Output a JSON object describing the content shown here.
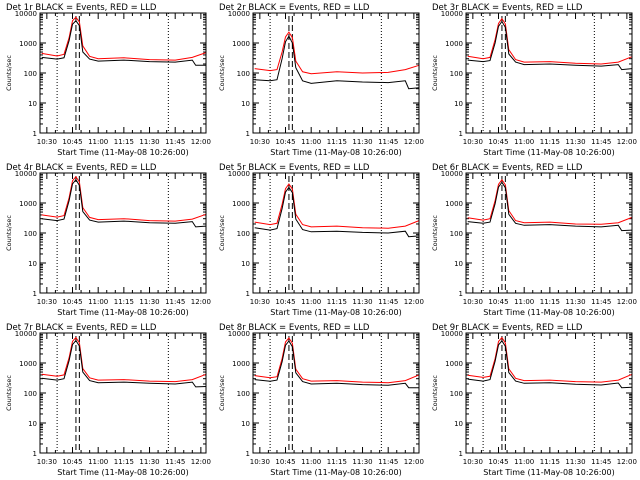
{
  "figure": {
    "rows": 3,
    "cols": 3
  },
  "colors": {
    "events": "#000000",
    "lld": "#ff0000",
    "axes": "#000000",
    "background": "#ffffff"
  },
  "chart_data": [
    {
      "type": "line",
      "title": "Det 1r BLACK = Events, RED = LLD",
      "xlabel": "Start Time (11-May-08 10:26:00)",
      "ylabel": "Counts/sec",
      "yscale": "log",
      "ylim": [
        1,
        10000
      ],
      "xlim": [
        "10:26",
        "12:03"
      ],
      "x_ticks": [
        "10:30",
        "10:45",
        "11:00",
        "11:15",
        "11:30",
        "11:45",
        "12:00"
      ],
      "y_ticks": [
        "1",
        "10",
        "100",
        "1000",
        "10000"
      ],
      "vertical_lines": {
        "dotted": [
          "10:36",
          "11:41"
        ],
        "dashed": [
          "10:47",
          "10:49"
        ]
      },
      "series": [
        {
          "color": "#ff0000",
          "x": [
            "10:27",
            "10:36",
            "10:40",
            "10:43",
            "10:45",
            "10:47",
            "10:49",
            "10:51",
            "10:55",
            "11:00",
            "11:15",
            "11:30",
            "11:45",
            "11:55",
            "12:03"
          ],
          "y": [
            450,
            370,
            420,
            1500,
            5500,
            7200,
            5000,
            800,
            360,
            300,
            320,
            280,
            270,
            330,
            480
          ]
        },
        {
          "color": "#000000",
          "x": [
            "10:27",
            "10:36",
            "10:40",
            "10:43",
            "10:45",
            "10:47",
            "10:49",
            "10:51",
            "10:55",
            "11:00",
            "11:15",
            "11:30",
            "11:45",
            "11:55",
            "11:57",
            "12:03"
          ],
          "y": [
            330,
            290,
            320,
            1200,
            4200,
            5500,
            3800,
            500,
            290,
            250,
            270,
            240,
            230,
            270,
            180,
            180
          ]
        }
      ]
    },
    {
      "type": "line",
      "title": "Det 2r BLACK = Events, RED = LLD",
      "xlabel": "Start Time (11-May-08 10:26:00)",
      "ylabel": "Counts/sec",
      "yscale": "log",
      "ylim": [
        1,
        10000
      ],
      "xlim": [
        "10:26",
        "12:03"
      ],
      "x_ticks": [
        "10:30",
        "10:45",
        "11:00",
        "11:15",
        "11:30",
        "11:45",
        "12:00"
      ],
      "y_ticks": [
        "1",
        "10",
        "100",
        "1000",
        "10000"
      ],
      "vertical_lines": {
        "dotted": [
          "10:36",
          "11:41"
        ],
        "dashed": [
          "10:47",
          "10:49"
        ]
      },
      "series": [
        {
          "color": "#ff0000",
          "x": [
            "10:27",
            "10:36",
            "10:40",
            "10:43",
            "10:45",
            "10:47",
            "10:49",
            "10:51",
            "10:55",
            "11:00",
            "11:15",
            "11:30",
            "11:45",
            "11:55",
            "12:03"
          ],
          "y": [
            140,
            120,
            130,
            500,
            1600,
            2300,
            1500,
            250,
            110,
            95,
            110,
            100,
            105,
            130,
            180
          ]
        },
        {
          "color": "#000000",
          "x": [
            "10:27",
            "10:36",
            "10:40",
            "10:43",
            "10:45",
            "10:47",
            "10:49",
            "10:51",
            "10:55",
            "11:00",
            "11:15",
            "11:30",
            "11:45",
            "11:55",
            "11:57",
            "12:03"
          ],
          "y": [
            60,
            55,
            60,
            300,
            1100,
            1700,
            1000,
            150,
            55,
            45,
            55,
            50,
            48,
            55,
            30,
            32
          ]
        }
      ]
    },
    {
      "type": "line",
      "title": "Det 3r BLACK = Events, RED = LLD",
      "xlabel": "Start Time (11-May-08 10:26:00)",
      "ylabel": "Counts/sec",
      "yscale": "log",
      "ylim": [
        1,
        10000
      ],
      "xlim": [
        "10:26",
        "12:03"
      ],
      "x_ticks": [
        "10:30",
        "10:45",
        "11:00",
        "11:15",
        "11:30",
        "11:45",
        "12:00"
      ],
      "y_ticks": [
        "1",
        "10",
        "100",
        "1000",
        "10000"
      ],
      "vertical_lines": {
        "dotted": [
          "10:36",
          "11:41"
        ],
        "dashed": [
          "10:47",
          "10:49"
        ]
      },
      "series": [
        {
          "color": "#ff0000",
          "x": [
            "10:27",
            "10:36",
            "10:40",
            "10:43",
            "10:45",
            "10:47",
            "10:49",
            "10:51",
            "10:55",
            "11:00",
            "11:15",
            "11:30",
            "11:45",
            "11:55",
            "12:03"
          ],
          "y": [
            360,
            300,
            330,
            1300,
            4500,
            6500,
            4300,
            600,
            280,
            230,
            240,
            210,
            200,
            230,
            350
          ]
        },
        {
          "color": "#000000",
          "x": [
            "10:27",
            "10:36",
            "10:40",
            "10:43",
            "10:45",
            "10:47",
            "10:49",
            "10:51",
            "10:55",
            "11:00",
            "11:15",
            "11:30",
            "11:45",
            "11:55",
            "11:57",
            "12:03"
          ],
          "y": [
            270,
            240,
            260,
            1000,
            3600,
            5200,
            3300,
            430,
            230,
            190,
            200,
            180,
            170,
            190,
            130,
            140
          ]
        }
      ]
    },
    {
      "type": "line",
      "title": "Det 4r BLACK = Events, RED = LLD",
      "xlabel": "Start Time (11-May-08 10:26:00)",
      "ylabel": "Counts/sec",
      "yscale": "log",
      "ylim": [
        1,
        10000
      ],
      "xlim": [
        "10:26",
        "12:03"
      ],
      "x_ticks": [
        "10:30",
        "10:45",
        "11:00",
        "11:15",
        "11:30",
        "11:45",
        "12:00"
      ],
      "y_ticks": [
        "1",
        "10",
        "100",
        "1000",
        "10000"
      ],
      "vertical_lines": {
        "dotted": [
          "10:36",
          "11:41"
        ],
        "dashed": [
          "10:47",
          "10:49"
        ]
      },
      "series": [
        {
          "color": "#ff0000",
          "x": [
            "10:27",
            "10:36",
            "10:40",
            "10:43",
            "10:45",
            "10:47",
            "10:49",
            "10:51",
            "10:55",
            "11:00",
            "11:15",
            "11:30",
            "11:45",
            "11:55",
            "12:03"
          ],
          "y": [
            400,
            340,
            380,
            1500,
            5500,
            7500,
            5000,
            700,
            330,
            280,
            300,
            260,
            250,
            290,
            420
          ]
        },
        {
          "color": "#000000",
          "x": [
            "10:27",
            "10:36",
            "10:40",
            "10:43",
            "10:45",
            "10:47",
            "10:49",
            "10:51",
            "10:55",
            "11:00",
            "11:15",
            "11:30",
            "11:45",
            "11:55",
            "11:57",
            "12:03"
          ],
          "y": [
            300,
            260,
            290,
            1200,
            4300,
            6000,
            3900,
            520,
            270,
            230,
            250,
            220,
            210,
            240,
            160,
            170
          ]
        }
      ]
    },
    {
      "type": "line",
      "title": "Det 5r BLACK = Events, RED = LLD",
      "xlabel": "Start Time (11-May-08 10:26:00)",
      "ylabel": "Counts/sec",
      "yscale": "log",
      "ylim": [
        1,
        10000
      ],
      "xlim": [
        "10:26",
        "12:03"
      ],
      "x_ticks": [
        "10:30",
        "10:45",
        "11:00",
        "11:15",
        "11:30",
        "11:45",
        "12:00"
      ],
      "y_ticks": [
        "1",
        "10",
        "100",
        "1000",
        "10000"
      ],
      "vertical_lines": {
        "dotted": [
          "10:36",
          "11:41"
        ],
        "dashed": [
          "10:47",
          "10:49"
        ]
      },
      "series": [
        {
          "color": "#ff0000",
          "x": [
            "10:27",
            "10:36",
            "10:40",
            "10:43",
            "10:45",
            "10:47",
            "10:49",
            "10:51",
            "10:55",
            "11:00",
            "11:15",
            "11:30",
            "11:45",
            "11:55",
            "12:03"
          ],
          "y": [
            230,
            190,
            210,
            900,
            3000,
            4300,
            2900,
            420,
            190,
            160,
            170,
            150,
            145,
            170,
            260
          ]
        },
        {
          "color": "#000000",
          "x": [
            "10:27",
            "10:36",
            "10:40",
            "10:43",
            "10:45",
            "10:47",
            "10:49",
            "10:51",
            "10:55",
            "11:00",
            "11:15",
            "11:30",
            "11:45",
            "11:55",
            "11:57",
            "12:03"
          ],
          "y": [
            150,
            125,
            140,
            650,
            2300,
            3300,
            2200,
            290,
            130,
            110,
            115,
            105,
            100,
            115,
            75,
            80
          ]
        }
      ]
    },
    {
      "type": "line",
      "title": "Det 6r BLACK = Events, RED = LLD",
      "xlabel": "Start Time (11-May-08 10:26:00)",
      "ylabel": "Counts/sec",
      "yscale": "log",
      "ylim": [
        1,
        10000
      ],
      "xlim": [
        "10:26",
        "12:03"
      ],
      "x_ticks": [
        "10:30",
        "10:45",
        "11:00",
        "11:15",
        "11:30",
        "11:45",
        "12:00"
      ],
      "y_ticks": [
        "1",
        "10",
        "100",
        "1000",
        "10000"
      ],
      "vertical_lines": {
        "dotted": [
          "10:36",
          "11:41"
        ],
        "dashed": [
          "10:47",
          "10:49"
        ]
      },
      "series": [
        {
          "color": "#ff0000",
          "x": [
            "10:27",
            "10:36",
            "10:40",
            "10:43",
            "10:45",
            "10:47",
            "10:49",
            "10:51",
            "10:55",
            "11:00",
            "11:15",
            "11:30",
            "11:45",
            "11:55",
            "12:03"
          ],
          "y": [
            320,
            270,
            300,
            1200,
            4200,
            6000,
            4000,
            560,
            260,
            220,
            230,
            200,
            195,
            220,
            330
          ]
        },
        {
          "color": "#000000",
          "x": [
            "10:27",
            "10:36",
            "10:40",
            "10:43",
            "10:45",
            "10:47",
            "10:49",
            "10:51",
            "10:55",
            "11:00",
            "11:15",
            "11:30",
            "11:45",
            "11:55",
            "11:57",
            "12:03"
          ],
          "y": [
            240,
            210,
            230,
            950,
            3400,
            4900,
            3200,
            420,
            210,
            180,
            190,
            170,
            160,
            180,
            120,
            125
          ]
        }
      ]
    },
    {
      "type": "line",
      "title": "Det 7r BLACK = Events, RED = LLD",
      "xlabel": "Start Time (11-May-08 10:26:00)",
      "ylabel": "Counts/sec",
      "yscale": "log",
      "ylim": [
        1,
        10000
      ],
      "xlim": [
        "10:26",
        "12:03"
      ],
      "x_ticks": [
        "10:30",
        "10:45",
        "11:00",
        "11:15",
        "11:30",
        "11:45",
        "12:00"
      ],
      "y_ticks": [
        "1",
        "10",
        "100",
        "1000",
        "10000"
      ],
      "vertical_lines": {
        "dotted": [
          "10:36",
          "11:41"
        ],
        "dashed": [
          "10:47",
          "10:49"
        ]
      },
      "series": [
        {
          "color": "#ff0000",
          "x": [
            "10:27",
            "10:36",
            "10:40",
            "10:43",
            "10:45",
            "10:47",
            "10:49",
            "10:51",
            "10:55",
            "11:00",
            "11:15",
            "11:30",
            "11:45",
            "11:55",
            "12:03"
          ],
          "y": [
            420,
            360,
            400,
            1500,
            5300,
            7000,
            4700,
            650,
            320,
            270,
            280,
            250,
            240,
            280,
            420
          ]
        },
        {
          "color": "#000000",
          "x": [
            "10:27",
            "10:36",
            "10:40",
            "10:43",
            "10:45",
            "10:47",
            "10:49",
            "10:51",
            "10:55",
            "11:00",
            "11:15",
            "11:30",
            "11:45",
            "11:55",
            "11:57",
            "12:03"
          ],
          "y": [
            310,
            270,
            300,
            1200,
            4100,
            5600,
            3700,
            500,
            260,
            220,
            230,
            210,
            200,
            230,
            160,
            165
          ]
        }
      ]
    },
    {
      "type": "line",
      "title": "Det 8r BLACK = Events, RED = LLD",
      "xlabel": "Start Time (11-May-08 10:26:00)",
      "ylabel": "Counts/sec",
      "yscale": "log",
      "ylim": [
        1,
        10000
      ],
      "xlim": [
        "10:26",
        "12:03"
      ],
      "x_ticks": [
        "10:30",
        "10:45",
        "11:00",
        "11:15",
        "11:30",
        "11:45",
        "12:00"
      ],
      "y_ticks": [
        "1",
        "10",
        "100",
        "1000",
        "10000"
      ],
      "vertical_lines": {
        "dotted": [
          "10:36",
          "11:41"
        ],
        "dashed": [
          "10:47",
          "10:49"
        ]
      },
      "series": [
        {
          "color": "#ff0000",
          "x": [
            "10:27",
            "10:36",
            "10:40",
            "10:43",
            "10:45",
            "10:47",
            "10:49",
            "10:51",
            "10:55",
            "11:00",
            "11:15",
            "11:30",
            "11:45",
            "11:55",
            "12:03"
          ],
          "y": [
            380,
            320,
            350,
            1400,
            5000,
            6800,
            4500,
            620,
            300,
            250,
            260,
            230,
            220,
            260,
            400
          ]
        },
        {
          "color": "#000000",
          "x": [
            "10:27",
            "10:36",
            "10:40",
            "10:43",
            "10:45",
            "10:47",
            "10:49",
            "10:51",
            "10:55",
            "11:00",
            "11:15",
            "11:30",
            "11:45",
            "11:55",
            "11:57",
            "12:03"
          ],
          "y": [
            280,
            245,
            270,
            1100,
            3900,
            5400,
            3500,
            470,
            240,
            200,
            210,
            190,
            180,
            210,
            150,
            150
          ]
        }
      ]
    },
    {
      "type": "line",
      "title": "Det 9r BLACK = Events, RED = LLD",
      "xlabel": "Start Time (11-May-08 10:26:00)",
      "ylabel": "Counts/sec",
      "yscale": "log",
      "ylim": [
        1,
        10000
      ],
      "xlim": [
        "10:26",
        "12:03"
      ],
      "x_ticks": [
        "10:30",
        "10:45",
        "11:00",
        "11:15",
        "11:30",
        "11:45",
        "12:00"
      ],
      "y_ticks": [
        "1",
        "10",
        "100",
        "1000",
        "10000"
      ],
      "vertical_lines": {
        "dotted": [
          "10:36",
          "11:41"
        ],
        "dashed": [
          "10:47",
          "10:49"
        ]
      },
      "series": [
        {
          "color": "#ff0000",
          "x": [
            "10:27",
            "10:36",
            "10:40",
            "10:43",
            "10:45",
            "10:47",
            "10:49",
            "10:51",
            "10:55",
            "11:00",
            "11:15",
            "11:30",
            "11:45",
            "11:55",
            "12:03"
          ],
          "y": [
            390,
            330,
            360,
            1400,
            5200,
            7000,
            4600,
            640,
            310,
            260,
            270,
            240,
            230,
            270,
            420
          ]
        },
        {
          "color": "#000000",
          "x": [
            "10:27",
            "10:36",
            "10:40",
            "10:43",
            "10:45",
            "10:47",
            "10:49",
            "10:51",
            "10:55",
            "11:00",
            "11:15",
            "11:30",
            "11:45",
            "11:55",
            "11:57",
            "12:03"
          ],
          "y": [
            290,
            250,
            280,
            1150,
            4000,
            5500,
            3600,
            480,
            250,
            210,
            220,
            195,
            185,
            215,
            150,
            155
          ]
        }
      ]
    }
  ]
}
